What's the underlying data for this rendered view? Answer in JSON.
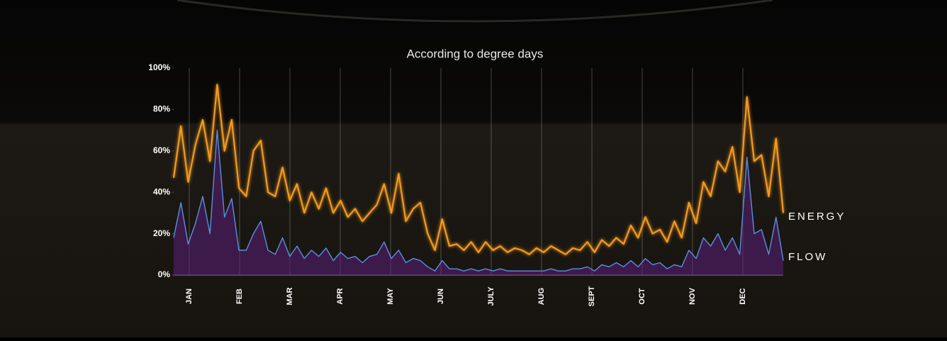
{
  "chart_data": {
    "type": "line",
    "title": "According to degree days",
    "xticks": [
      "JAN",
      "FEB",
      "MAR",
      "APR",
      "MAY",
      "JUN",
      "JULY",
      "AUG",
      "SEPT",
      "OCT",
      "NOV",
      "DEC"
    ],
    "ylim": [
      0,
      100
    ],
    "yticks": [
      {
        "value": 0,
        "label": "0%"
      },
      {
        "value": 20,
        "label": "20%"
      },
      {
        "value": 40,
        "label": "40%"
      },
      {
        "value": 60,
        "label": "60%"
      },
      {
        "value": 80,
        "label": "80%"
      },
      {
        "value": 100,
        "label": "100%"
      }
    ],
    "grid": true,
    "series": [
      {
        "name": "ENERGY",
        "color": "#f39a1e",
        "values": [
          47,
          72,
          45,
          63,
          75,
          55,
          92,
          60,
          75,
          42,
          38,
          60,
          65,
          40,
          38,
          52,
          36,
          44,
          30,
          40,
          32,
          42,
          30,
          36,
          28,
          32,
          26,
          30,
          34,
          44,
          30,
          49,
          26,
          32,
          35,
          20,
          12,
          27,
          14,
          15,
          12,
          16,
          11,
          16,
          12,
          14,
          11,
          13,
          12,
          10,
          13,
          11,
          14,
          12,
          10,
          13,
          12,
          16,
          11,
          17,
          14,
          18,
          15,
          24,
          18,
          28,
          20,
          22,
          16,
          26,
          18,
          35,
          25,
          45,
          38,
          55,
          50,
          62,
          40,
          86,
          55,
          58,
          38,
          66,
          30
        ]
      },
      {
        "name": "FLOW",
        "color": "#5b8fe0",
        "values": [
          18,
          35,
          15,
          25,
          38,
          20,
          70,
          28,
          37,
          12,
          12,
          20,
          26,
          12,
          10,
          18,
          9,
          14,
          8,
          12,
          9,
          13,
          7,
          11,
          8,
          9,
          6,
          9,
          10,
          16,
          8,
          12,
          6,
          8,
          7,
          4,
          2,
          7,
          3,
          3,
          2,
          3,
          2,
          3,
          2,
          3,
          2,
          2,
          2,
          2,
          2,
          2,
          3,
          2,
          2,
          3,
          3,
          4,
          2,
          5,
          4,
          6,
          4,
          7,
          4,
          8,
          5,
          6,
          3,
          5,
          4,
          12,
          8,
          18,
          14,
          20,
          12,
          18,
          10,
          57,
          20,
          22,
          10,
          28,
          7
        ]
      }
    ]
  }
}
